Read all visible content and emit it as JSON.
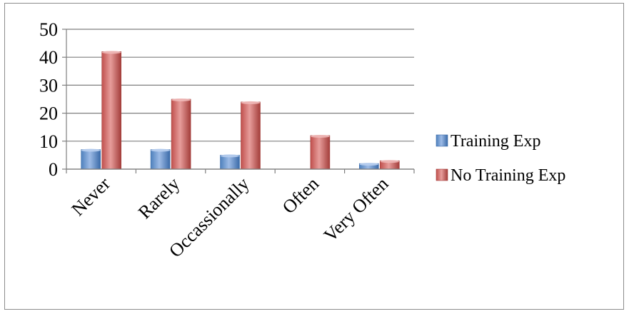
{
  "chart_data": {
    "type": "bar",
    "categories": [
      "Never",
      "Rarely",
      "Occassionally",
      "Often",
      "Very Often"
    ],
    "series": [
      {
        "name": "Training Exp",
        "values": [
          7,
          7,
          5,
          0,
          2
        ],
        "color": "#4f81bd"
      },
      {
        "name": "No Training Exp",
        "values": [
          42,
          25,
          24,
          12,
          3
        ],
        "color": "#c0504d"
      }
    ],
    "ylim": [
      0,
      50
    ],
    "yticks": [
      0,
      10,
      20,
      30,
      40,
      50
    ],
    "grid": true,
    "legend_position": "right",
    "title": "",
    "xlabel": "",
    "ylabel": ""
  }
}
